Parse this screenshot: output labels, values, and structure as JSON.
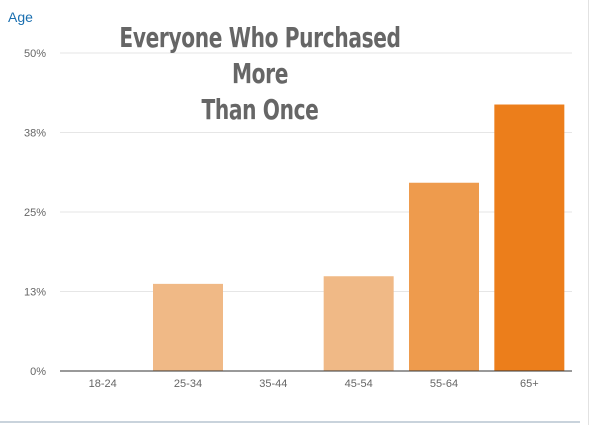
{
  "panel_label": "Age",
  "chart_data": {
    "type": "bar",
    "title": "Everyone Who Purchased More Than Once",
    "title_lines": [
      "Everyone Who Purchased More",
      "Than Once"
    ],
    "categories": [
      "18-24",
      "25-34",
      "35-44",
      "45-54",
      "55-64",
      "65+"
    ],
    "values": [
      0,
      13.7,
      0,
      14.9,
      29.6,
      41.9
    ],
    "ylim": [
      0,
      50
    ],
    "yticks": [
      0,
      12.5,
      25,
      37.5,
      50
    ],
    "ytick_labels": [
      "0%",
      "13%",
      "25%",
      "38%",
      "50%"
    ],
    "xlabel": "",
    "ylabel": "",
    "grid": true,
    "bar_colors": [
      "#f0b986",
      "#f0b986",
      "#f0b986",
      "#f0b986",
      "#ee9b4d",
      "#ec7e1b"
    ]
  }
}
